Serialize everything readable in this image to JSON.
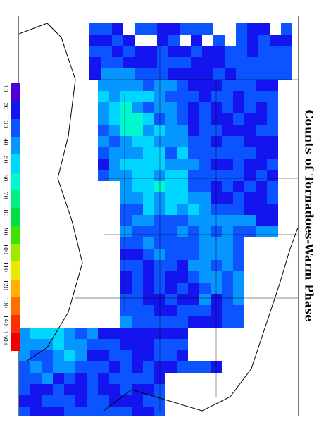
{
  "title": "Counts of Tornadoes-Warm Phase",
  "legend": {
    "labels": [
      "10",
      "20",
      "30",
      "40",
      "50",
      "60",
      "70",
      "80",
      "90",
      "100",
      "110",
      "120",
      "130",
      "140",
      "150+"
    ],
    "colors": [
      "#4f00d8",
      "#1414ee",
      "#0b54ff",
      "#0596ff",
      "#00d6ff",
      "#00f7d0",
      "#00ee84",
      "#00dd44",
      "#40e000",
      "#a0e800",
      "#e8e800",
      "#ffb000",
      "#ff6e00",
      "#ff2e00",
      "#ee0000"
    ]
  },
  "chart_data": {
    "type": "heatmap",
    "title": "Counts of Tornadoes-Warm Phase",
    "legend_position": "left",
    "color_scale": [
      "10",
      "20",
      "30",
      "40",
      "50",
      "60",
      "70",
      "80",
      "90",
      "100",
      "110",
      "120",
      "130",
      "140",
      "150+"
    ],
    "grid_rows_note": "rows run left-to-right across page (north at left); values estimated from colour",
    "cells": []
  }
}
